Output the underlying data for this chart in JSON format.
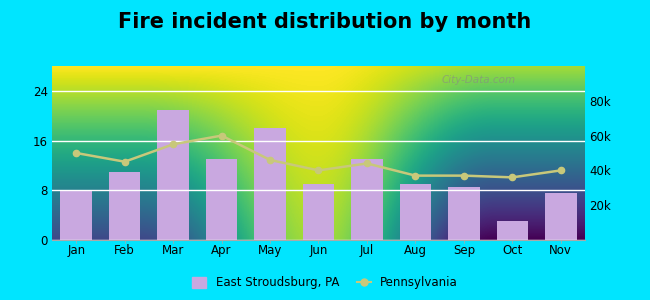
{
  "title": "Fire incident distribution by month",
  "months": [
    "Jan",
    "Feb",
    "Mar",
    "Apr",
    "May",
    "Jun",
    "Jul",
    "Aug",
    "Sep",
    "Oct",
    "Nov"
  ],
  "bar_values": [
    8,
    11,
    21,
    13,
    18,
    9,
    13,
    9,
    8.5,
    3,
    7.5
  ],
  "line_values": [
    50000,
    45000,
    55000,
    60000,
    46000,
    40000,
    44000,
    37000,
    37000,
    36000,
    40000
  ],
  "bar_color": "#c9a8e0",
  "line_color": "#c8c87a",
  "left_ylim": [
    0,
    28
  ],
  "right_ylim": [
    0,
    100000
  ],
  "left_yticks": [
    0,
    8,
    16,
    24
  ],
  "right_yticks": [
    20000,
    40000,
    60000,
    80000
  ],
  "right_yticklabels": [
    "20k",
    "40k",
    "60k",
    "80k"
  ],
  "bg_top_color": "#f5f5f0",
  "bg_bottom_color": "#d8f0d0",
  "outer_background": "#00e5ff",
  "title_fontsize": 15,
  "legend_label_bar": "East Stroudsburg, PA",
  "legend_label_line": "Pennsylvania",
  "watermark": "City-Data.com"
}
